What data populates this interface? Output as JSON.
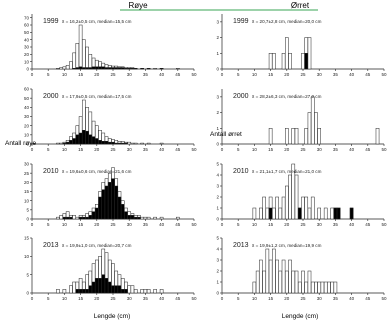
{
  "header": {
    "left_species": "Røye",
    "right_species": "Ørret"
  },
  "axes": {
    "xlabel": "Lengde (cm)",
    "ylabel_left": "Antall røye",
    "ylabel_right": "Antall ørret",
    "x_ticks": [
      "0",
      "5",
      "10",
      "15",
      "20",
      "25",
      "30",
      "35",
      "40",
      "45",
      "50"
    ]
  },
  "colors": {
    "header_line": "#3aa655",
    "bar_light": "#ffffff",
    "bar_dark": "#000000",
    "axis": "#222222"
  },
  "chart_data": [
    {
      "type": "bar",
      "species": "Røye",
      "year": "1999",
      "stats": "x̄ = 16,2±0,5 cm, median=15,5 cm",
      "ylim": [
        0,
        75
      ],
      "y_ticks": [
        "0",
        "10",
        "20",
        "30",
        "40",
        "50",
        "60",
        "70"
      ],
      "xlim": [
        0,
        50
      ],
      "x": [
        8,
        9,
        10,
        11,
        12,
        13,
        14,
        15,
        16,
        17,
        18,
        19,
        20,
        21,
        22,
        23,
        24,
        25,
        26,
        27,
        28,
        29,
        30,
        31,
        32,
        34,
        36,
        38,
        40,
        45
      ],
      "series": [
        {
          "values": [
            1,
            2,
            3,
            5,
            10,
            22,
            35,
            60,
            40,
            30,
            20,
            15,
            12,
            10,
            8,
            6,
            5,
            4,
            4,
            3,
            3,
            2,
            2,
            2,
            1,
            1,
            1,
            1,
            1,
            1
          ]
        },
        {
          "values": [
            0,
            0,
            0,
            0,
            0,
            1,
            2,
            3,
            2,
            2,
            2,
            3,
            3,
            3,
            3,
            2,
            2,
            2,
            2,
            2,
            2,
            1,
            1,
            1,
            1,
            1,
            1,
            0,
            1,
            0
          ]
        }
      ]
    },
    {
      "type": "bar",
      "species": "Ørret",
      "year": "1999",
      "stats": "x̄ = 20,7±2,8 cm, median=20,0 cm",
      "ylim": [
        0,
        3.5
      ],
      "y_ticks": [
        "0",
        "1",
        "2",
        "3"
      ],
      "xlim": [
        0,
        50
      ],
      "x": [
        15,
        16,
        19,
        20,
        21,
        25,
        26,
        27
      ],
      "series": [
        {
          "values": [
            1,
            1,
            1,
            2,
            1,
            1,
            2,
            2
          ]
        },
        {
          "values": [
            0,
            0,
            0,
            0,
            0,
            0,
            1,
            0
          ]
        }
      ]
    },
    {
      "type": "bar",
      "species": "Røye",
      "year": "2000",
      "stats": "x̄ = 17,9±0,5 cm, median=17,5 cm",
      "ylim": [
        0,
        60
      ],
      "y_ticks": [
        "0",
        "10",
        "20",
        "30",
        "40",
        "50",
        "60"
      ],
      "xlim": [
        0,
        50
      ],
      "x": [
        8,
        9,
        10,
        11,
        12,
        13,
        14,
        15,
        16,
        17,
        18,
        19,
        20,
        21,
        22,
        23,
        24,
        25,
        26,
        27,
        28,
        29,
        30,
        31,
        32,
        34,
        36,
        40
      ],
      "series": [
        {
          "values": [
            1,
            1,
            2,
            4,
            8,
            12,
            20,
            30,
            48,
            40,
            35,
            25,
            20,
            15,
            12,
            8,
            6,
            5,
            4,
            3,
            3,
            2,
            2,
            1,
            1,
            1,
            1,
            1
          ]
        },
        {
          "values": [
            0,
            0,
            1,
            2,
            4,
            6,
            10,
            12,
            15,
            14,
            10,
            8,
            6,
            4,
            3,
            3,
            2,
            2,
            1,
            1,
            1,
            1,
            0,
            0,
            0,
            0,
            0,
            0
          ]
        }
      ]
    },
    {
      "type": "bar",
      "species": "Ørret",
      "year": "2000",
      "stats": "x̄ = 28,2±6,3 cm, median=27,0 cm",
      "ylim": [
        0,
        3.5
      ],
      "y_ticks": [
        "0",
        "1",
        "2",
        "3"
      ],
      "xlim": [
        0,
        50
      ],
      "x": [
        15,
        20,
        22,
        23,
        26,
        27,
        28,
        29,
        30,
        48
      ],
      "series": [
        {
          "values": [
            1,
            1,
            1,
            1,
            1,
            2,
            3,
            2,
            1,
            1
          ]
        },
        {
          "values": [
            0,
            0,
            0,
            0,
            0,
            0,
            0,
            0,
            0,
            0
          ]
        }
      ]
    },
    {
      "type": "bar",
      "species": "Røye",
      "year": "2010",
      "stats": "x̄ = 19,6±0,6 cm, median=21,6 cm",
      "ylim": [
        0,
        30
      ],
      "y_ticks": [
        "0",
        "5",
        "10",
        "15",
        "20",
        "25",
        "30"
      ],
      "xlim": [
        0,
        50
      ],
      "x": [
        8,
        9,
        10,
        11,
        12,
        13,
        14,
        15,
        16,
        17,
        18,
        19,
        20,
        21,
        22,
        23,
        24,
        25,
        26,
        27,
        28,
        29,
        30,
        31,
        32,
        33,
        34,
        35,
        36,
        38,
        40,
        45
      ],
      "series": [
        {
          "values": [
            1,
            2,
            3,
            4,
            2,
            2,
            1,
            2,
            2,
            3,
            4,
            6,
            8,
            15,
            20,
            22,
            25,
            28,
            22,
            15,
            10,
            6,
            4,
            3,
            2,
            2,
            1,
            1,
            1,
            1,
            1,
            1
          ]
        },
        {
          "values": [
            0,
            0,
            1,
            1,
            1,
            0,
            0,
            1,
            1,
            1,
            2,
            4,
            6,
            12,
            16,
            18,
            20,
            22,
            18,
            12,
            8,
            4,
            2,
            2,
            1,
            1,
            0,
            0,
            0,
            0,
            0,
            0
          ]
        }
      ]
    },
    {
      "type": "bar",
      "species": "Ørret",
      "year": "2010",
      "stats": "x̄ = 21,1±1,7 cm, median=21,0 cm",
      "ylim": [
        0,
        5
      ],
      "y_ticks": [
        "0",
        "1",
        "2",
        "3",
        "4",
        "5"
      ],
      "xlim": [
        0,
        50
      ],
      "x": [
        10,
        12,
        13,
        14,
        15,
        16,
        17,
        18,
        19,
        20,
        21,
        22,
        23,
        24,
        25,
        26,
        27,
        28,
        30,
        32,
        34,
        35,
        36,
        40
      ],
      "series": [
        {
          "values": [
            1,
            1,
            2,
            1,
            2,
            1,
            2,
            1,
            2,
            3,
            4,
            5,
            4,
            1,
            2,
            2,
            1,
            2,
            1,
            1,
            1,
            1,
            1,
            1
          ]
        },
        {
          "values": [
            0,
            0,
            0,
            0,
            1,
            0,
            0,
            0,
            0,
            0,
            0,
            0,
            0,
            1,
            0,
            0,
            0,
            0,
            0,
            0,
            0,
            1,
            1,
            1
          ]
        }
      ]
    },
    {
      "type": "bar",
      "species": "Røye",
      "year": "2013",
      "stats": "x̄ = 19,9±1,0 cm, median=20,7 cm",
      "ylim": [
        0,
        15
      ],
      "y_ticks": [
        "0",
        "5",
        "10",
        "15"
      ],
      "xlim": [
        0,
        50
      ],
      "x": [
        8,
        10,
        12,
        13,
        14,
        15,
        16,
        17,
        18,
        19,
        20,
        21,
        22,
        23,
        24,
        25,
        26,
        27,
        28,
        29,
        30,
        31,
        32,
        34,
        35,
        36,
        38,
        40
      ],
      "series": [
        {
          "values": [
            1,
            1,
            2,
            3,
            3,
            4,
            3,
            5,
            6,
            8,
            9,
            10,
            12,
            11,
            9,
            8,
            6,
            5,
            4,
            3,
            2,
            2,
            1,
            1,
            1,
            1,
            1,
            1
          ]
        },
        {
          "values": [
            0,
            0,
            0,
            0,
            1,
            1,
            1,
            1,
            2,
            3,
            4,
            4,
            5,
            4,
            3,
            2,
            2,
            2,
            1,
            1,
            0,
            0,
            0,
            0,
            0,
            0,
            0,
            0
          ]
        }
      ]
    },
    {
      "type": "bar",
      "species": "Ørret",
      "year": "2013",
      "stats": "x̄ = 19,9±1,2 cm, median=19,9 cm",
      "ylim": [
        0,
        5
      ],
      "y_ticks": [
        "0",
        "1",
        "2",
        "3",
        "4",
        "5"
      ],
      "xlim": [
        0,
        50
      ],
      "x": [
        10,
        11,
        12,
        13,
        14,
        15,
        16,
        17,
        18,
        19,
        20,
        21,
        22,
        23,
        24,
        25,
        26,
        27,
        28,
        29,
        30,
        31,
        32,
        33,
        34,
        35
      ],
      "series": [
        {
          "values": [
            1,
            2,
            3,
            2,
            4,
            3,
            4,
            3,
            2,
            3,
            2,
            3,
            2,
            2,
            1,
            2,
            1,
            2,
            1,
            1,
            1,
            1,
            1,
            1,
            1,
            1
          ]
        },
        {
          "values": [
            0,
            0,
            0,
            0,
            0,
            0,
            0,
            0,
            0,
            0,
            0,
            0,
            0,
            0,
            0,
            0,
            0,
            0,
            0,
            0,
            0,
            0,
            0,
            0,
            0,
            0
          ]
        }
      ]
    }
  ]
}
